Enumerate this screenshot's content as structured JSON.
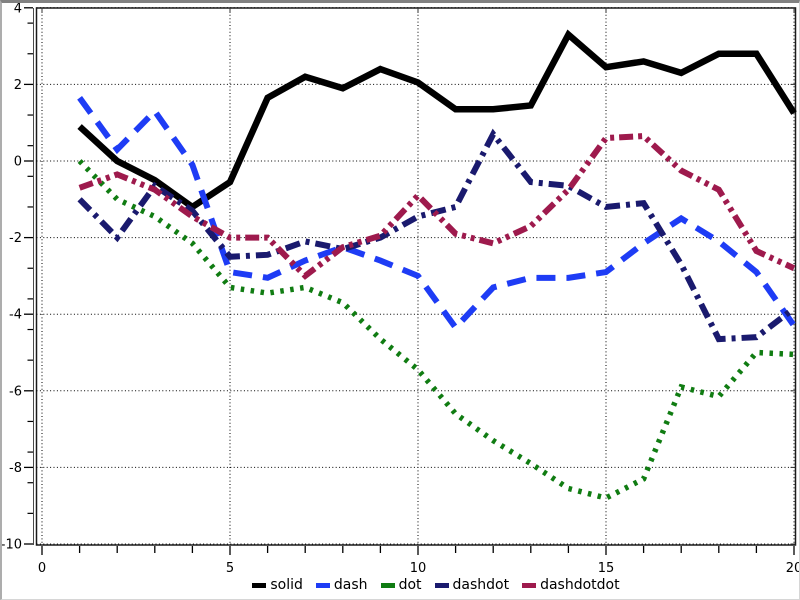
{
  "chart_data": {
    "type": "line",
    "x": [
      1,
      2,
      3,
      4,
      5,
      6,
      7,
      8,
      9,
      10,
      11,
      12,
      13,
      14,
      15,
      16,
      17,
      18,
      19,
      20
    ],
    "series": [
      {
        "name": "solid",
        "label": "solid",
        "color": "#000000",
        "dash_style": "solid",
        "values": [
          0.9,
          0.0,
          -0.5,
          -1.2,
          -0.55,
          1.65,
          2.2,
          1.9,
          2.4,
          2.05,
          1.35,
          1.35,
          1.45,
          3.3,
          2.45,
          2.6,
          2.3,
          2.8,
          2.8,
          1.25
        ]
      },
      {
        "name": "dash",
        "label": "dash",
        "color": "#1E3CF5",
        "dash_style": "dash",
        "values": [
          1.65,
          0.3,
          1.3,
          -0.1,
          -2.9,
          -3.05,
          -2.6,
          -2.25,
          -2.6,
          -3.0,
          -4.35,
          -3.3,
          -3.05,
          -3.05,
          -2.9,
          -2.15,
          -1.5,
          -2.1,
          -2.9,
          -4.3
        ]
      },
      {
        "name": "dot",
        "label": "dot",
        "color": "#107C12",
        "dash_style": "dot",
        "values": [
          0.0,
          -1.0,
          -1.45,
          -2.15,
          -3.3,
          -3.45,
          -3.3,
          -3.7,
          -4.65,
          -5.45,
          -6.6,
          -7.3,
          -7.9,
          -8.55,
          -8.8,
          -8.3,
          -5.9,
          -6.15,
          -5.0,
          -5.05
        ]
      },
      {
        "name": "dashdot",
        "label": "dashdot",
        "color": "#1A1A6E",
        "dash_style": "dashdot",
        "values": [
          -1.0,
          -2.0,
          -0.65,
          -1.3,
          -2.5,
          -2.45,
          -2.1,
          -2.3,
          -2.0,
          -1.45,
          -1.2,
          0.7,
          -0.55,
          -0.65,
          -1.2,
          -1.1,
          -2.7,
          -4.65,
          -4.6,
          -3.85
        ]
      },
      {
        "name": "dashdotdot",
        "label": "dashdotdot",
        "color": "#9E1A4D",
        "dash_style": "dashdotdot",
        "values": [
          -0.7,
          -0.35,
          -0.75,
          -1.45,
          -2.0,
          -2.0,
          -3.0,
          -2.25,
          -1.95,
          -0.9,
          -1.9,
          -2.15,
          -1.7,
          -0.75,
          0.6,
          0.65,
          -0.25,
          -0.75,
          -2.35,
          -2.8
        ]
      }
    ],
    "xlim": [
      0,
      20
    ],
    "ylim": [
      -10,
      4
    ],
    "xticks": [
      0,
      5,
      10,
      15,
      20
    ],
    "yticks": [
      4,
      2,
      0,
      -2,
      -4,
      -6,
      -8,
      -10
    ],
    "x_minor_step": 1,
    "y_minor_step": 0.8,
    "grid": "dotted",
    "grid_color": "#000000",
    "frame_color": "#1b1b1b",
    "tick_label_color": "#000000",
    "legend_position": "bottom-center"
  }
}
